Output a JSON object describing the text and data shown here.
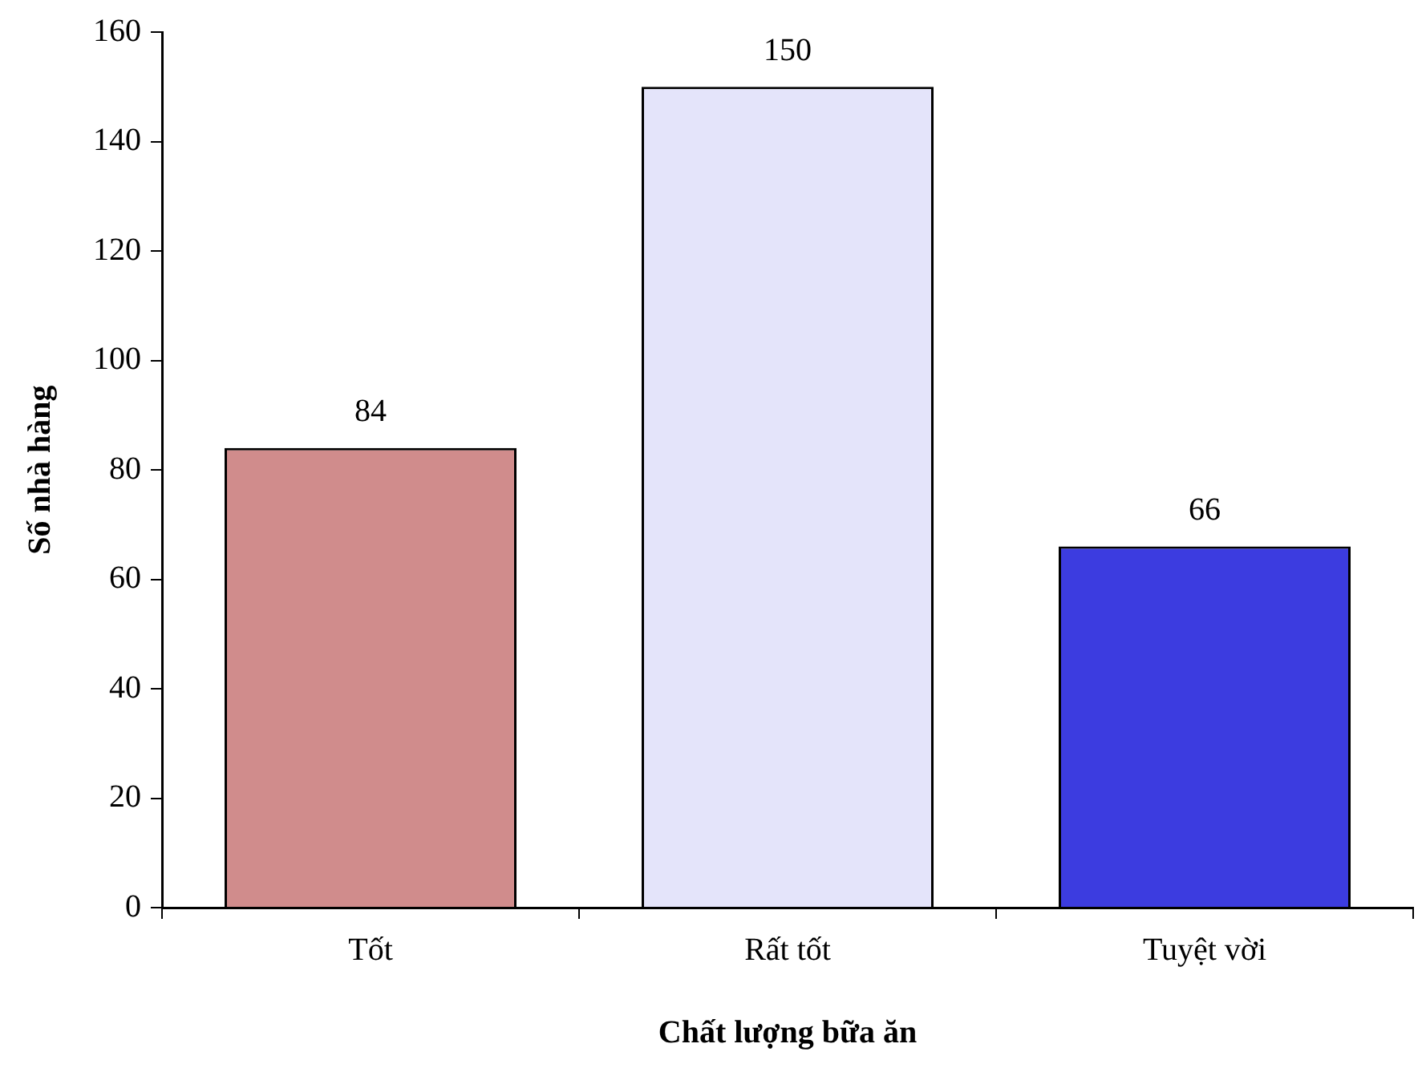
{
  "chart_data": {
    "type": "bar",
    "xlabel": "Chất lượng bữa ăn",
    "ylabel": "Số nhà hàng",
    "categories": [
      "Tốt",
      "Rất tốt",
      "Tuyệt vời"
    ],
    "values": [
      84,
      150,
      66
    ],
    "colors": [
      "#d08c8c",
      "#e4e4fa",
      "#3c3ce0"
    ],
    "ylim": [
      0,
      160
    ],
    "yticks": [
      0,
      20,
      40,
      60,
      80,
      100,
      120,
      140,
      160
    ],
    "grid": false,
    "legend": false,
    "data_labels": true
  }
}
